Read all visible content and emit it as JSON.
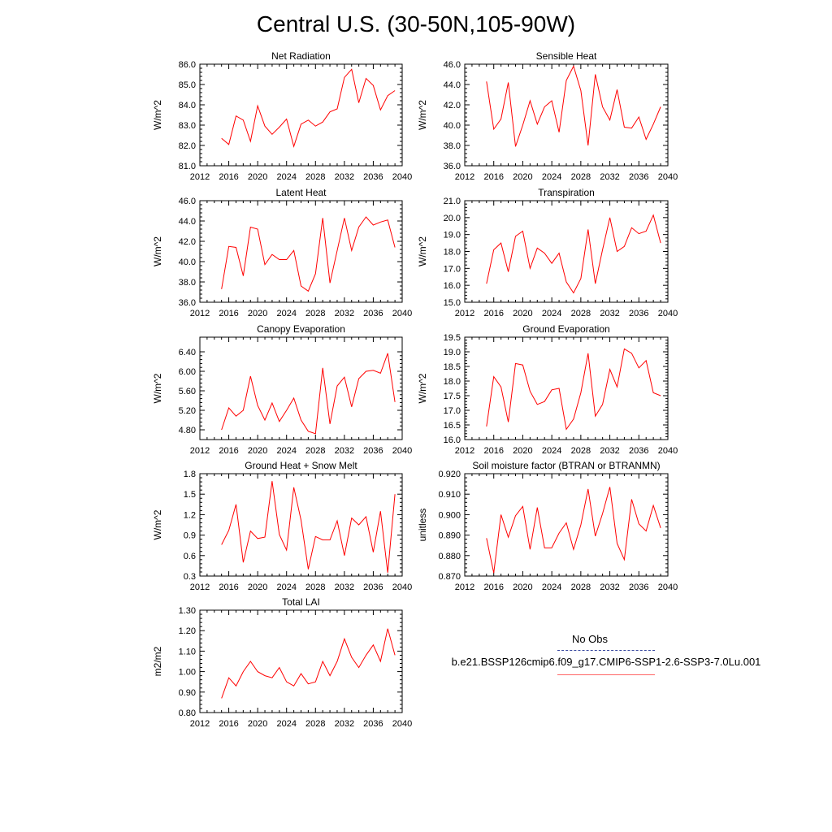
{
  "title": "Central U.S. (30-50N,105-90W)",
  "legend": {
    "obs_label": "No Obs",
    "run_label": "b.e21.BSSP126cmip6.f09_g17.CMIP6-SSP1-2.6-SSP3-7.0Lu.001",
    "obs_color": "#3a4aa0",
    "run_color": "#ff0000"
  },
  "chart_data": [
    {
      "type": "line",
      "title": "Net Radiation",
      "ylabel": "W/m^2",
      "xlim": [
        2012,
        2040
      ],
      "xticks": [
        "2012",
        "2016",
        "2020",
        "2024",
        "2028",
        "2032",
        "2036",
        "2040"
      ],
      "ylim": [
        81,
        86
      ],
      "yticks": [
        "81.0",
        "82.0",
        "83.0",
        "84.0",
        "85.0",
        "86.0"
      ],
      "series": [
        {
          "color": "#ff0000",
          "x": [
            2015,
            2016,
            2017,
            2018,
            2019,
            2020,
            2021,
            2022,
            2023,
            2024,
            2025,
            2026,
            2027,
            2028,
            2029,
            2030,
            2031,
            2032,
            2033,
            2034,
            2035,
            2036,
            2037,
            2038,
            2039
          ],
          "values": [
            82.35,
            82.05,
            83.45,
            83.25,
            82.2,
            83.95,
            82.95,
            82.55,
            82.9,
            83.3,
            81.95,
            83.05,
            83.25,
            82.95,
            83.15,
            83.65,
            83.8,
            85.35,
            85.75,
            84.1,
            85.3,
            84.95,
            83.75,
            84.45,
            84.7
          ]
        }
      ]
    },
    {
      "type": "line",
      "title": "Sensible Heat",
      "ylabel": "W/m^2",
      "xlim": [
        2012,
        2040
      ],
      "xticks": [
        "2012",
        "2016",
        "2020",
        "2024",
        "2028",
        "2032",
        "2036",
        "2040"
      ],
      "ylim": [
        36,
        46
      ],
      "yticks": [
        "36.0",
        "38.0",
        "40.0",
        "42.0",
        "44.0",
        "46.0"
      ],
      "series": [
        {
          "color": "#ff0000",
          "x": [
            2015,
            2016,
            2017,
            2018,
            2019,
            2020,
            2021,
            2022,
            2023,
            2024,
            2025,
            2026,
            2027,
            2028,
            2029,
            2030,
            2031,
            2032,
            2033,
            2034,
            2035,
            2036,
            2037,
            2038,
            2039
          ],
          "values": [
            44.3,
            39.6,
            40.6,
            44.2,
            37.9,
            40.0,
            42.4,
            40.1,
            41.8,
            42.4,
            39.3,
            44.4,
            45.8,
            43.4,
            38.0,
            45.0,
            41.8,
            40.5,
            43.5,
            39.8,
            39.7,
            40.8,
            38.6,
            40.1,
            41.8
          ]
        }
      ]
    },
    {
      "type": "line",
      "title": "Latent Heat",
      "ylabel": "W/m^2",
      "xlim": [
        2012,
        2040
      ],
      "xticks": [
        "2012",
        "2016",
        "2020",
        "2024",
        "2028",
        "2032",
        "2036",
        "2040"
      ],
      "ylim": [
        36,
        46
      ],
      "yticks": [
        "36.0",
        "38.0",
        "40.0",
        "42.0",
        "44.0",
        "46.0"
      ],
      "series": [
        {
          "color": "#ff0000",
          "x": [
            2015,
            2016,
            2017,
            2018,
            2019,
            2020,
            2021,
            2022,
            2023,
            2024,
            2025,
            2026,
            2027,
            2028,
            2029,
            2030,
            2031,
            2032,
            2033,
            2034,
            2035,
            2036,
            2037,
            2038,
            2039
          ],
          "values": [
            37.3,
            41.5,
            41.4,
            38.6,
            43.4,
            43.2,
            39.7,
            40.7,
            40.2,
            40.2,
            41.1,
            37.6,
            37.1,
            38.8,
            44.3,
            37.9,
            41.1,
            44.3,
            41.1,
            43.4,
            44.4,
            43.6,
            43.9,
            44.1,
            41.4
          ]
        }
      ]
    },
    {
      "type": "line",
      "title": "Transpiration",
      "ylabel": "W/m^2",
      "xlim": [
        2012,
        2040
      ],
      "xticks": [
        "2012",
        "2016",
        "2020",
        "2024",
        "2028",
        "2032",
        "2036",
        "2040"
      ],
      "ylim": [
        15,
        21
      ],
      "yticks": [
        "15.0",
        "16.0",
        "17.0",
        "18.0",
        "19.0",
        "20.0",
        "21.0"
      ],
      "series": [
        {
          "color": "#ff0000",
          "x": [
            2015,
            2016,
            2017,
            2018,
            2019,
            2020,
            2021,
            2022,
            2023,
            2024,
            2025,
            2026,
            2027,
            2028,
            2029,
            2030,
            2031,
            2032,
            2033,
            2034,
            2035,
            2036,
            2037,
            2038,
            2039
          ],
          "values": [
            16.1,
            18.1,
            18.5,
            16.8,
            18.9,
            19.2,
            17.0,
            18.2,
            17.9,
            17.3,
            17.9,
            16.2,
            15.55,
            16.4,
            19.3,
            16.1,
            18.1,
            20.0,
            18.0,
            18.3,
            19.4,
            19.05,
            19.2,
            20.15,
            18.5
          ]
        }
      ]
    },
    {
      "type": "line",
      "title": "Canopy Evaporation",
      "ylabel": "W/m^2",
      "xlim": [
        2012,
        2040
      ],
      "xticks": [
        "2012",
        "2016",
        "2020",
        "2024",
        "2028",
        "2032",
        "2036",
        "2040"
      ],
      "ylim": [
        4.6,
        6.7
      ],
      "yticks": [
        "4.80",
        "5.20",
        "5.60",
        "6.00",
        "6.40"
      ],
      "ytick_values": [
        4.8,
        5.2,
        5.6,
        6.0,
        6.4
      ],
      "series": [
        {
          "color": "#ff0000",
          "x": [
            2015,
            2016,
            2017,
            2018,
            2019,
            2020,
            2021,
            2022,
            2023,
            2024,
            2025,
            2026,
            2027,
            2028,
            2029,
            2030,
            2031,
            2032,
            2033,
            2034,
            2035,
            2036,
            2037,
            2038,
            2039
          ],
          "values": [
            4.8,
            5.25,
            5.08,
            5.2,
            5.9,
            5.3,
            5.0,
            5.35,
            4.97,
            5.2,
            5.45,
            5.0,
            4.77,
            4.72,
            6.07,
            4.92,
            5.7,
            5.88,
            5.27,
            5.85,
            6.0,
            6.02,
            5.96,
            6.37,
            5.37
          ]
        }
      ]
    },
    {
      "type": "line",
      "title": "Ground Evaporation",
      "ylabel": "W/m^2",
      "xlim": [
        2012,
        2040
      ],
      "xticks": [
        "2012",
        "2016",
        "2020",
        "2024",
        "2028",
        "2032",
        "2036",
        "2040"
      ],
      "ylim": [
        16,
        19.5
      ],
      "yticks": [
        "16.0",
        "16.5",
        "17.0",
        "17.5",
        "18.0",
        "18.5",
        "19.0",
        "19.5"
      ],
      "series": [
        {
          "color": "#ff0000",
          "x": [
            2015,
            2016,
            2017,
            2018,
            2019,
            2020,
            2021,
            2022,
            2023,
            2024,
            2025,
            2026,
            2027,
            2028,
            2029,
            2030,
            2031,
            2032,
            2033,
            2034,
            2035,
            2036,
            2037,
            2038,
            2039
          ],
          "values": [
            16.45,
            18.15,
            17.8,
            16.6,
            18.6,
            18.55,
            17.65,
            17.2,
            17.3,
            17.7,
            17.75,
            16.35,
            16.7,
            17.6,
            18.95,
            16.8,
            17.2,
            18.4,
            17.8,
            19.1,
            18.95,
            18.45,
            18.7,
            17.6,
            17.5
          ]
        }
      ]
    },
    {
      "type": "line",
      "title": "Ground Heat + Snow Melt",
      "ylabel": "W/m^2",
      "xlim": [
        2012,
        2040
      ],
      "xticks": [
        "2012",
        "2016",
        "2020",
        "2024",
        "2028",
        "2032",
        "2036",
        "2040"
      ],
      "ylim": [
        0.3,
        1.8
      ],
      "yticks": [
        "0.3",
        "0.6",
        "0.9",
        "1.2",
        "1.5",
        "1.8"
      ],
      "series": [
        {
          "color": "#ff0000",
          "x": [
            2015,
            2016,
            2017,
            2018,
            2019,
            2020,
            2021,
            2022,
            2023,
            2024,
            2025,
            2026,
            2027,
            2028,
            2029,
            2030,
            2031,
            2032,
            2033,
            2034,
            2035,
            2036,
            2037,
            2038,
            2039
          ],
          "values": [
            0.76,
            0.97,
            1.35,
            0.5,
            0.96,
            0.85,
            0.87,
            1.69,
            0.91,
            0.68,
            1.6,
            1.12,
            0.4,
            0.88,
            0.83,
            0.83,
            1.11,
            0.6,
            1.15,
            1.05,
            1.17,
            0.65,
            1.25,
            0.35,
            1.5
          ]
        }
      ]
    },
    {
      "type": "line",
      "title": "Soil moisture factor (BTRAN or BTRANMN)",
      "ylabel": "unitless",
      "xlim": [
        2012,
        2040
      ],
      "xticks": [
        "2012",
        "2016",
        "2020",
        "2024",
        "2028",
        "2032",
        "2036",
        "2040"
      ],
      "ylim": [
        0.87,
        0.92
      ],
      "yticks": [
        "0.870",
        "0.880",
        "0.890",
        "0.900",
        "0.910",
        "0.920"
      ],
      "series": [
        {
          "color": "#ff0000",
          "x": [
            2015,
            2016,
            2017,
            2018,
            2019,
            2020,
            2021,
            2022,
            2023,
            2024,
            2025,
            2026,
            2027,
            2028,
            2029,
            2030,
            2031,
            2032,
            2033,
            2034,
            2035,
            2036,
            2037,
            2038,
            2039
          ],
          "values": [
            0.8885,
            0.8715,
            0.9,
            0.889,
            0.8995,
            0.904,
            0.883,
            0.9035,
            0.8838,
            0.8838,
            0.891,
            0.896,
            0.883,
            0.895,
            0.9125,
            0.8895,
            0.9005,
            0.9135,
            0.886,
            0.878,
            0.9075,
            0.8955,
            0.892,
            0.9045,
            0.8935
          ]
        }
      ]
    },
    {
      "type": "line",
      "title": "Total LAI",
      "ylabel": "m2/m2",
      "xlim": [
        2012,
        2040
      ],
      "xticks": [
        "2012",
        "2016",
        "2020",
        "2024",
        "2028",
        "2032",
        "2036",
        "2040"
      ],
      "ylim": [
        0.8,
        1.3
      ],
      "yticks": [
        "0.80",
        "0.90",
        "1.00",
        "1.10",
        "1.20",
        "1.30"
      ],
      "series": [
        {
          "color": "#ff0000",
          "x": [
            2015,
            2016,
            2017,
            2018,
            2019,
            2020,
            2021,
            2022,
            2023,
            2024,
            2025,
            2026,
            2027,
            2028,
            2029,
            2030,
            2031,
            2032,
            2033,
            2034,
            2035,
            2036,
            2037,
            2038,
            2039
          ],
          "values": [
            0.87,
            0.97,
            0.93,
            1.0,
            1.05,
            1.0,
            0.98,
            0.97,
            1.02,
            0.95,
            0.93,
            0.99,
            0.94,
            0.95,
            1.05,
            0.98,
            1.05,
            1.16,
            1.07,
            1.02,
            1.08,
            1.13,
            1.05,
            1.21,
            1.08
          ]
        }
      ]
    }
  ]
}
